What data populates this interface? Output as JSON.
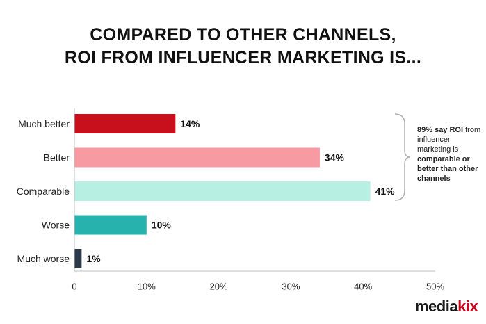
{
  "title_line1": "COMPARED TO OTHER CHANNELS,",
  "title_line2": "ROI FROM INFLUENCER MARKETING IS...",
  "chart_data": {
    "type": "bar",
    "orientation": "horizontal",
    "categories": [
      "Much better",
      "Better",
      "Comparable",
      "Worse",
      "Much worse"
    ],
    "values": [
      14,
      34,
      41,
      10,
      1
    ],
    "value_labels": [
      "14%",
      "34%",
      "41%",
      "10%",
      "1%"
    ],
    "colors": [
      "#c8101d",
      "#f79aa1",
      "#b8efe3",
      "#27b2ad",
      "#2c3a4a"
    ],
    "xlim": [
      0,
      50
    ],
    "xticks": [
      0,
      10,
      20,
      30,
      40,
      50
    ],
    "xtick_labels": [
      "0",
      "10%",
      "20%",
      "30%",
      "40%",
      "50%"
    ],
    "grid": false
  },
  "callout": {
    "part1": "89% say ",
    "part2": "ROI",
    "part3": " from influencer marketing is ",
    "part4": "comparable or better than other channels"
  },
  "brand": {
    "main": "media",
    "accent": "kix"
  }
}
